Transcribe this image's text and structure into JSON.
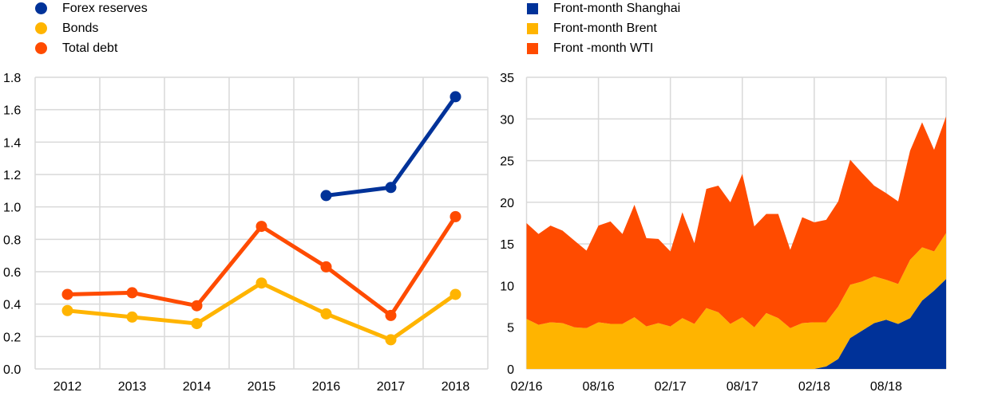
{
  "colors": {
    "blue": "#003299",
    "yellow": "#FFB400",
    "orange": "#FF4B00",
    "grid": "#d9d9d9"
  },
  "chart_data": [
    {
      "type": "line",
      "title": "",
      "xlabel": "",
      "ylabel": "",
      "categories": [
        "2012",
        "2013",
        "2014",
        "2015",
        "2016",
        "2017",
        "2018"
      ],
      "ylim": [
        0,
        1.8
      ],
      "yticks": [
        "0.0",
        "0.2",
        "0.4",
        "0.6",
        "0.8",
        "1.0",
        "1.2",
        "1.4",
        "1.6",
        "1.8"
      ],
      "grid": true,
      "legend_position": "top-left",
      "series": [
        {
          "name": "Forex reserves",
          "color": "#003299",
          "values": [
            null,
            null,
            null,
            null,
            1.07,
            1.12,
            1.68
          ]
        },
        {
          "name": "Bonds",
          "color": "#FFB400",
          "values": [
            0.36,
            0.32,
            0.28,
            0.53,
            0.34,
            0.18,
            0.46
          ]
        },
        {
          "name": "Total debt",
          "color": "#FF4B00",
          "values": [
            0.46,
            0.47,
            0.39,
            0.88,
            0.63,
            0.33,
            0.94
          ]
        }
      ]
    },
    {
      "type": "area",
      "stacked": true,
      "title": "",
      "xlabel": "",
      "ylabel": "",
      "x_start": "02/16",
      "x_frequency": "monthly",
      "xticks": [
        "02/16",
        "08/16",
        "02/17",
        "08/17",
        "02/18",
        "08/18"
      ],
      "ylim": [
        0,
        35
      ],
      "yticks": [
        "0",
        "5",
        "10",
        "15",
        "20",
        "25",
        "30",
        "35"
      ],
      "grid": true,
      "legend_position": "top-left",
      "series": [
        {
          "name": "Front-month Shanghai",
          "color": "#003299",
          "values": [
            0,
            0,
            0,
            0,
            0,
            0,
            0,
            0,
            0,
            0,
            0,
            0,
            0,
            0,
            0,
            0,
            0,
            0,
            0,
            0,
            0,
            0,
            0,
            0,
            0,
            0.3,
            1.2,
            3.7,
            4.6,
            5.5,
            5.9,
            5.4,
            6.1,
            8.2,
            9.4,
            10.8
          ]
        },
        {
          "name": "Front-month Brent",
          "color": "#FFB400",
          "values": [
            6.0,
            5.3,
            5.6,
            5.5,
            5.0,
            4.9,
            5.6,
            5.4,
            5.4,
            6.2,
            5.1,
            5.5,
            5.1,
            6.1,
            5.4,
            7.3,
            6.8,
            5.4,
            6.2,
            5.0,
            6.7,
            6.1,
            4.9,
            5.5,
            5.6,
            5.3,
            6.3,
            6.4,
            5.9,
            5.6,
            4.8,
            4.8,
            7.0,
            6.4,
            4.7,
            5.5
          ]
        },
        {
          "name": "Front -month WTI",
          "color": "#FF4B00",
          "values": [
            11.5,
            10.9,
            11.6,
            11.1,
            10.4,
            9.3,
            11.6,
            12.3,
            10.8,
            13.5,
            10.6,
            10.1,
            9.0,
            12.7,
            9.7,
            14.3,
            15.2,
            14.6,
            17.2,
            12.1,
            11.9,
            12.5,
            9.4,
            12.7,
            12.0,
            12.3,
            12.6,
            15.0,
            13.0,
            10.9,
            10.4,
            9.9,
            13.1,
            15.0,
            12.2,
            14.0
          ]
        }
      ]
    }
  ]
}
